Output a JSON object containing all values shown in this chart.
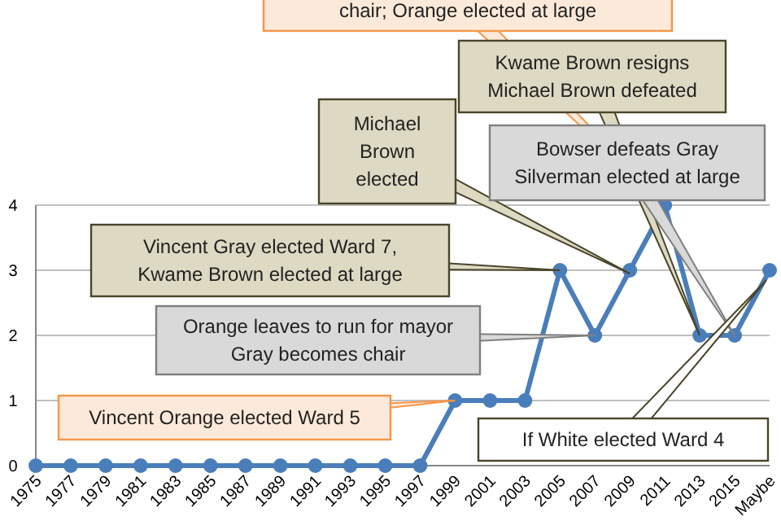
{
  "chart_data": {
    "type": "line",
    "categories": [
      "1975",
      "1977",
      "1979",
      "1981",
      "1983",
      "1985",
      "1987",
      "1989",
      "1991",
      "1993",
      "1995",
      "1997",
      "1999",
      "2001",
      "2003",
      "2005",
      "2007",
      "2009",
      "2011",
      "2013",
      "2015",
      "Maybe"
    ],
    "series": [
      {
        "color": "#4a7ebb",
        "values": [
          0,
          0,
          0,
          0,
          0,
          0,
          0,
          0,
          0,
          0,
          0,
          0,
          1,
          1,
          1,
          3,
          2,
          3,
          4,
          2,
          2,
          3
        ]
      }
    ],
    "ylim": [
      0,
      4
    ],
    "yticks": [
      0,
      1,
      2,
      3,
      4
    ],
    "grid": "y",
    "marker": "circle",
    "line_style": "solid",
    "annotations": [
      "chair; Orange elected at large",
      {
        "text": "Kwame Brown resigns Michael Brown defeated",
        "x": "2013",
        "y": 2
      },
      "Michael Brown elected",
      "Bowser defeats Gray Silverman elected at large",
      {
        "text": "Vincent Gray elected Ward 7, Kwame Brown elected at large",
        "x": "2005",
        "y": 3
      },
      {
        "text": "Orange leaves to run for mayor Gray becomes chair",
        "x": "2007",
        "y": 2
      },
      {
        "text": "Vincent Orange elected Ward 5",
        "x": "1999",
        "y": 1
      },
      "If White elected Ward 4"
    ]
  }
}
